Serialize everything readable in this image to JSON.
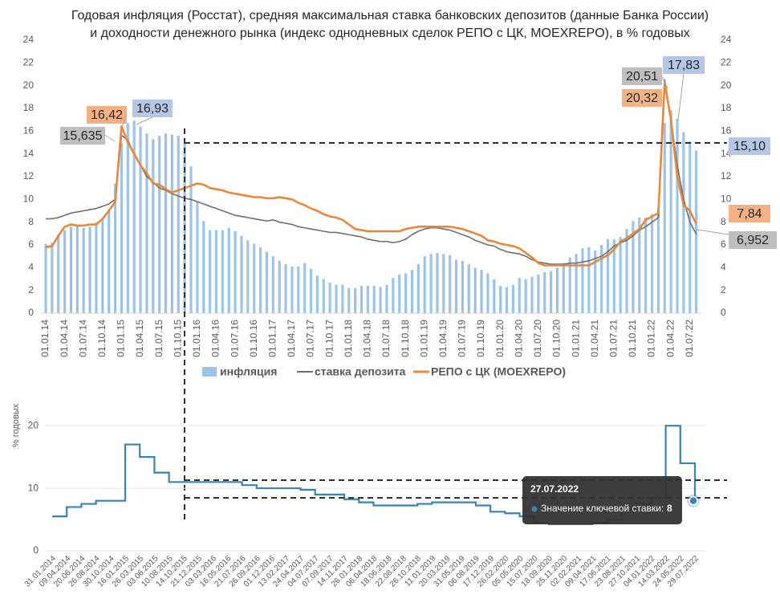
{
  "chart_data": [
    {
      "type": "bar_line",
      "title": "Годовая инфляция (Росстат), средняя максимальная ставка банковских депозитов (данные Банка России)",
      "subtitle": "и доходности денежного рынка (индекс однодневных сделок РЕПО с ЦК, MOEXREPO), в % годовых",
      "categories": [
        "01.01.14",
        null,
        null,
        "01.04.14",
        null,
        null,
        "01.07.14",
        null,
        null,
        "01.10.14",
        null,
        null,
        "01.01.15",
        null,
        null,
        "01.04.15",
        null,
        null,
        "01.07.15",
        null,
        null,
        "01.10.15",
        null,
        null,
        "01.01.16",
        null,
        null,
        "01.04.16",
        null,
        null,
        "01.07.16",
        null,
        null,
        "01.10.16",
        null,
        null,
        "01.01.17",
        null,
        null,
        "01.04.17",
        null,
        null,
        "01.07.17",
        null,
        null,
        "01.10.17",
        null,
        null,
        "01.01.18",
        null,
        null,
        "01.04.18",
        null,
        null,
        "01.07.18",
        null,
        null,
        "01.10.18",
        null,
        null,
        "01.01.19",
        null,
        null,
        "01.04.19",
        null,
        null,
        "01.07.19",
        null,
        null,
        "01.10.19",
        null,
        null,
        "01.01.20",
        null,
        null,
        "01.04.20",
        null,
        null,
        "01.07.20",
        null,
        null,
        "01.10.20",
        null,
        null,
        "01.01.21",
        null,
        null,
        "01.04.21",
        null,
        null,
        "01.07.21",
        null,
        null,
        "01.10.21",
        null,
        null,
        "01.01.22",
        null,
        null,
        "01.04.22",
        null,
        null,
        "01.07.22",
        null
      ],
      "series": [
        {
          "name": "инфляция",
          "type": "bar",
          "color": "#9dc3e6",
          "values": [
            6.1,
            6.2,
            6.9,
            7.3,
            7.6,
            7.8,
            7.5,
            7.6,
            8.0,
            8.3,
            9.1,
            11.4,
            15.0,
            16.7,
            16.93,
            16.4,
            15.8,
            15.3,
            15.6,
            15.8,
            15.7,
            15.6,
            15.0,
            12.9,
            9.8,
            8.1,
            7.3,
            7.3,
            7.3,
            7.5,
            7.2,
            6.8,
            6.4,
            6.1,
            5.8,
            5.4,
            5.0,
            4.6,
            4.3,
            4.1,
            4.1,
            4.4,
            3.9,
            3.3,
            3.0,
            2.7,
            2.5,
            2.5,
            2.2,
            2.2,
            2.4,
            2.4,
            2.4,
            2.3,
            2.5,
            3.1,
            3.4,
            3.5,
            3.8,
            4.3,
            5.0,
            5.2,
            5.3,
            5.2,
            5.1,
            4.7,
            4.6,
            4.3,
            4.0,
            3.8,
            3.5,
            3.0,
            2.4,
            2.3,
            2.5,
            3.1,
            3.0,
            3.2,
            3.4,
            3.6,
            3.7,
            4.0,
            4.4,
            4.9,
            5.2,
            5.7,
            5.8,
            5.5,
            6.0,
            6.5,
            6.5,
            6.7,
            7.4,
            8.1,
            8.4,
            8.4,
            8.7,
            9.2,
            16.7,
            17.83,
            17.1,
            15.9,
            15.1,
            14.3
          ]
        },
        {
          "name": "ставка депозита",
          "type": "line",
          "color": "#6f6f6f",
          "values": [
            8.3,
            8.3,
            8.4,
            8.6,
            8.8,
            8.9,
            9.0,
            9.1,
            9.2,
            9.4,
            9.6,
            10.0,
            15.635,
            15.2,
            14.0,
            13.0,
            12.0,
            11.5,
            11.0,
            10.8,
            10.5,
            10.3,
            10.1,
            10.0,
            9.8,
            9.6,
            9.4,
            9.2,
            9.0,
            8.8,
            8.6,
            8.5,
            8.4,
            8.3,
            8.2,
            8.1,
            8.2,
            8.0,
            7.9,
            7.8,
            7.6,
            7.5,
            7.4,
            7.3,
            7.2,
            7.1,
            7.1,
            7.0,
            6.9,
            6.8,
            6.7,
            6.5,
            6.4,
            6.3,
            6.3,
            6.2,
            6.3,
            6.5,
            6.9,
            7.2,
            7.4,
            7.5,
            7.5,
            7.4,
            7.3,
            7.1,
            6.9,
            6.7,
            6.4,
            6.2,
            6.0,
            5.9,
            5.6,
            5.4,
            5.3,
            5.2,
            5.0,
            4.7,
            4.5,
            4.4,
            4.3,
            4.3,
            4.3,
            4.4,
            4.4,
            4.5,
            4.6,
            4.8,
            5.0,
            5.4,
            5.9,
            6.2,
            6.4,
            6.8,
            7.3,
            7.6,
            8.0,
            8.4,
            20.51,
            17.0,
            13.0,
            10.0,
            8.0,
            6.952
          ]
        },
        {
          "name": "РЕПО с ЦК (MOEXREPO)",
          "type": "line",
          "color": "#e8883a",
          "values": [
            5.8,
            5.9,
            6.8,
            7.6,
            7.8,
            7.7,
            7.7,
            7.8,
            7.8,
            8.3,
            9.0,
            9.8,
            16.42,
            15.0,
            14.0,
            13.0,
            12.3,
            11.4,
            11.3,
            10.9,
            10.6,
            10.8,
            11.0,
            11.2,
            11.4,
            11.3,
            11.0,
            10.9,
            10.8,
            10.6,
            10.5,
            10.4,
            10.3,
            10.2,
            10.2,
            10.1,
            10.1,
            10.2,
            10.1,
            10.0,
            9.7,
            9.5,
            9.2,
            9.0,
            8.7,
            8.5,
            8.4,
            8.2,
            7.8,
            7.4,
            7.3,
            7.2,
            7.2,
            7.2,
            7.2,
            7.2,
            7.2,
            7.4,
            7.5,
            7.6,
            7.6,
            7.6,
            7.6,
            7.6,
            7.6,
            7.5,
            7.4,
            7.2,
            7.0,
            6.8,
            6.4,
            6.3,
            6.1,
            6.0,
            5.9,
            5.7,
            5.3,
            4.9,
            4.4,
            4.2,
            4.2,
            4.2,
            4.2,
            4.2,
            4.2,
            4.2,
            4.2,
            4.5,
            4.8,
            5.1,
            5.6,
            6.3,
            6.6,
            7.0,
            7.4,
            8.2,
            8.5,
            8.8,
            20.32,
            17.0,
            12.0,
            9.5,
            9.0,
            7.84
          ]
        }
      ],
      "annotations": [
        {
          "text": "15,635",
          "series": 1,
          "color": "#bfbfbf"
        },
        {
          "text": "16,42",
          "series": 2,
          "color": "#f4b183"
        },
        {
          "text": "16,93",
          "series": 0,
          "color": "#b4c7e7"
        },
        {
          "text": "20,51",
          "series": 1,
          "color": "#bfbfbf"
        },
        {
          "text": "20,32",
          "series": 2,
          "color": "#f4b183"
        },
        {
          "text": "17,83",
          "series": 0,
          "color": "#b4c7e7"
        },
        {
          "text": "15,10",
          "series": 0,
          "color": "#b4c7e7"
        },
        {
          "text": "7,84",
          "series": 2,
          "color": "#f4b183"
        },
        {
          "text": "6,952",
          "series": 1,
          "color": "#bfbfbf"
        }
      ],
      "ylim": [
        0,
        24
      ],
      "yticks": [
        0,
        2,
        4,
        6,
        8,
        10,
        12,
        14,
        16,
        18,
        20,
        22,
        24
      ],
      "legend": "bottom"
    },
    {
      "type": "step",
      "y_label": "% годовых",
      "categories": [
        "31.01.2014",
        "09.04.2014",
        "20.06.2014",
        "26.08.2014",
        "30.10.2014",
        "16.01.2015",
        "26.03.2015",
        "03.06.2015",
        "10.08.2015",
        "14.10.2015",
        "21.12.2015",
        "03.03.2016",
        "16.05.2016",
        "21.07.2016",
        "26.09.2016",
        "01.12.2016",
        "13.02.2017",
        "24.04.2017",
        "04.07.2017",
        "07.09.2017",
        "14.11.2017",
        "26.01.2018",
        "06.04.2018",
        "18.06.2018",
        "22.08.2018",
        "26.10.2018",
        "11.01.2019",
        "20.03.2019",
        "31.05.2019",
        "06.08.2019",
        "17.12.2019",
        "26.02.2020",
        "05.05.2020",
        "15.07.2020",
        "18.09.2020",
        "25.11.2020",
        "02.02.2021",
        "09.04.2021",
        "17.06.2021",
        "23.08.2021",
        "27.10.2021",
        "04.01.2022",
        "14.03.2022",
        "24.05.2022",
        "29.07.2022"
      ],
      "color": "#3a84b5",
      "values": [
        5.5,
        7.0,
        7.5,
        8.0,
        8.0,
        17.0,
        15.0,
        12.5,
        11.0,
        11.0,
        11.0,
        11.0,
        11.0,
        10.5,
        10.0,
        10.0,
        10.0,
        9.75,
        9.0,
        9.0,
        8.25,
        7.75,
        7.25,
        7.25,
        7.25,
        7.5,
        7.75,
        7.75,
        7.75,
        7.25,
        6.25,
        6.0,
        5.5,
        4.5,
        4.25,
        4.25,
        4.25,
        4.5,
        5.0,
        6.5,
        7.5,
        8.5,
        20.0,
        14.0,
        8.0
      ],
      "ylim": [
        0,
        24
      ],
      "yticks": [
        0,
        10,
        20
      ],
      "tooltip": {
        "date": "27.07.2022",
        "label": "Значение ключевой ставки:",
        "value": 8
      }
    }
  ]
}
